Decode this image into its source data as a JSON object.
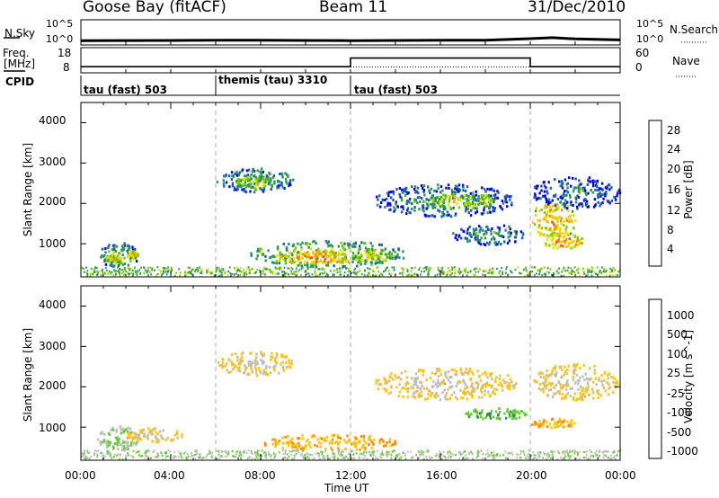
{
  "header": {
    "station": "Goose Bay (fitACF)",
    "beam": "Beam 11",
    "date": "31/Dec/2010"
  },
  "panels": {
    "nsky_label": "N.Sky",
    "nsky_top_tick": "10^5",
    "nsky_bottom_tick": "10^0",
    "nsearch_label": "N.Search",
    "nsearch_top_tick": "10^5",
    "nsearch_bottom_tick": "10^0",
    "freq_label_1": "Freq.",
    "freq_label_2": "[MHz]",
    "freq_top_tick": "18",
    "freq_bottom_tick": "8",
    "nave_label": "Nave",
    "nave_top_tick": "60",
    "nave_bottom_tick": "0",
    "cpid_label": "CPID",
    "cpid_segments": [
      "tau (fast) 503",
      "themis (tau) 3310",
      "tau (fast) 503"
    ]
  },
  "power_colorbar": {
    "title": "Power [dB]",
    "ticks": [
      "28",
      "24",
      "20",
      "16",
      "12",
      "8",
      "4"
    ],
    "colors": [
      "#ff0000",
      "#ff4a00",
      "#ff8c00",
      "#ffc800",
      "#e4e400",
      "#7ccd00",
      "#2ea043",
      "#2a8a7a",
      "#1e5aa8",
      "#0000ff"
    ]
  },
  "velocity_colorbar": {
    "title": "Velocity [m s^-1]",
    "ticks": [
      "1000",
      "500",
      "100",
      "25",
      "-25",
      "-100",
      "-500",
      "-1000"
    ],
    "colors": [
      "#1f3ca8",
      "#2a6a9a",
      "#2e8b4a",
      "#66cc33",
      "#bdbdbd",
      "#ffc40a",
      "#ff8c00",
      "#ff5000",
      "#ff0000"
    ]
  },
  "axes": {
    "ylabel": "Slant Range [km]",
    "xlabel": "Time UT",
    "yticks": [
      "1000",
      "2000",
      "3000",
      "4000"
    ],
    "xticks": [
      "00:00",
      "04:00",
      "08:00",
      "12:00",
      "16:00",
      "20:00",
      "00:00"
    ]
  },
  "chart_data": [
    {
      "type": "line",
      "name": "N.Sky / N.Search",
      "x": [
        0,
        2,
        4,
        6,
        8,
        10,
        12,
        14,
        16,
        18,
        20,
        21,
        22,
        24
      ],
      "y": [
        0.85,
        0.88,
        0.9,
        0.92,
        0.92,
        0.9,
        0.85,
        0.9,
        0.95,
        0.95,
        1.25,
        1.45,
        1.2,
        1.0
      ],
      "xlim": [
        0,
        24
      ],
      "ylim": [
        0,
        5
      ]
    },
    {
      "type": "line",
      "name": "Frequency / Nave",
      "x": [
        0,
        12,
        12,
        20,
        20,
        24
      ],
      "y": [
        10,
        10,
        14,
        14,
        10,
        10
      ],
      "xlim": [
        0,
        24
      ],
      "ylim": [
        8,
        18
      ]
    },
    {
      "type": "heatmap",
      "title": "Power [dB]",
      "xlabel": "Time UT",
      "ylabel": "Slant Range [km]",
      "xlim": [
        0,
        24
      ],
      "ylim": [
        180,
        4500
      ],
      "regions": [
        {
          "t0": 0.7,
          "t1": 2.6,
          "r0": 450,
          "r1": 1050,
          "value": 13
        },
        {
          "t0": 1.0,
          "t1": 1.8,
          "r0": 550,
          "r1": 750,
          "value": 20
        },
        {
          "t0": 2.0,
          "t1": 2.5,
          "r0": 650,
          "r1": 850,
          "value": 22
        },
        {
          "t0": 6.0,
          "t1": 9.5,
          "r0": 2300,
          "r1": 2900,
          "value": 12
        },
        {
          "t0": 6.8,
          "t1": 8.6,
          "r0": 2400,
          "r1": 2700,
          "value": 18
        },
        {
          "t0": 7.5,
          "t1": 14.5,
          "r0": 450,
          "r1": 1100,
          "value": 16
        },
        {
          "t0": 8.6,
          "t1": 12.2,
          "r0": 500,
          "r1": 850,
          "value": 24
        },
        {
          "t0": 12.0,
          "t1": 13.8,
          "r0": 550,
          "r1": 900,
          "value": 18
        },
        {
          "t0": 13.0,
          "t1": 19.3,
          "r0": 1700,
          "r1": 2500,
          "value": 10
        },
        {
          "t0": 15.2,
          "t1": 18.5,
          "r0": 1900,
          "r1": 2300,
          "value": 18
        },
        {
          "t0": 16.5,
          "t1": 19.8,
          "r0": 1000,
          "r1": 1500,
          "value": 10
        },
        {
          "t0": 20.0,
          "t1": 22.0,
          "r0": 1100,
          "r1": 2100,
          "value": 22
        },
        {
          "t0": 20.5,
          "t1": 22.3,
          "r0": 900,
          "r1": 1300,
          "value": 24
        },
        {
          "t0": 20.0,
          "t1": 24.0,
          "r0": 1900,
          "r1": 2700,
          "value": 8
        }
      ]
    },
    {
      "type": "heatmap",
      "title": "Velocity [m s^-1]",
      "xlabel": "Time UT",
      "ylabel": "Slant Range [km]",
      "xlim": [
        0,
        24
      ],
      "ylim": [
        180,
        4500
      ],
      "regions": [
        {
          "t0": 0.7,
          "t1": 2.6,
          "r0": 450,
          "r1": 1050,
          "value": 60
        },
        {
          "t0": 2.0,
          "t1": 4.5,
          "r0": 650,
          "r1": 1000,
          "value": 0
        },
        {
          "t0": 6.0,
          "t1": 9.5,
          "r0": 2300,
          "r1": 2900,
          "value": 0
        },
        {
          "t0": 8.0,
          "t1": 14.0,
          "r0": 450,
          "r1": 850,
          "value": -60
        },
        {
          "t0": 13.0,
          "t1": 19.5,
          "r0": 1700,
          "r1": 2500,
          "value": 0
        },
        {
          "t0": 17.0,
          "t1": 19.8,
          "r0": 1200,
          "r1": 1500,
          "value": 120
        },
        {
          "t0": 20.0,
          "t1": 22.0,
          "r0": 1000,
          "r1": 1250,
          "value": -60
        },
        {
          "t0": 20.0,
          "t1": 24.0,
          "r0": 1700,
          "r1": 2600,
          "value": 0
        }
      ]
    }
  ]
}
